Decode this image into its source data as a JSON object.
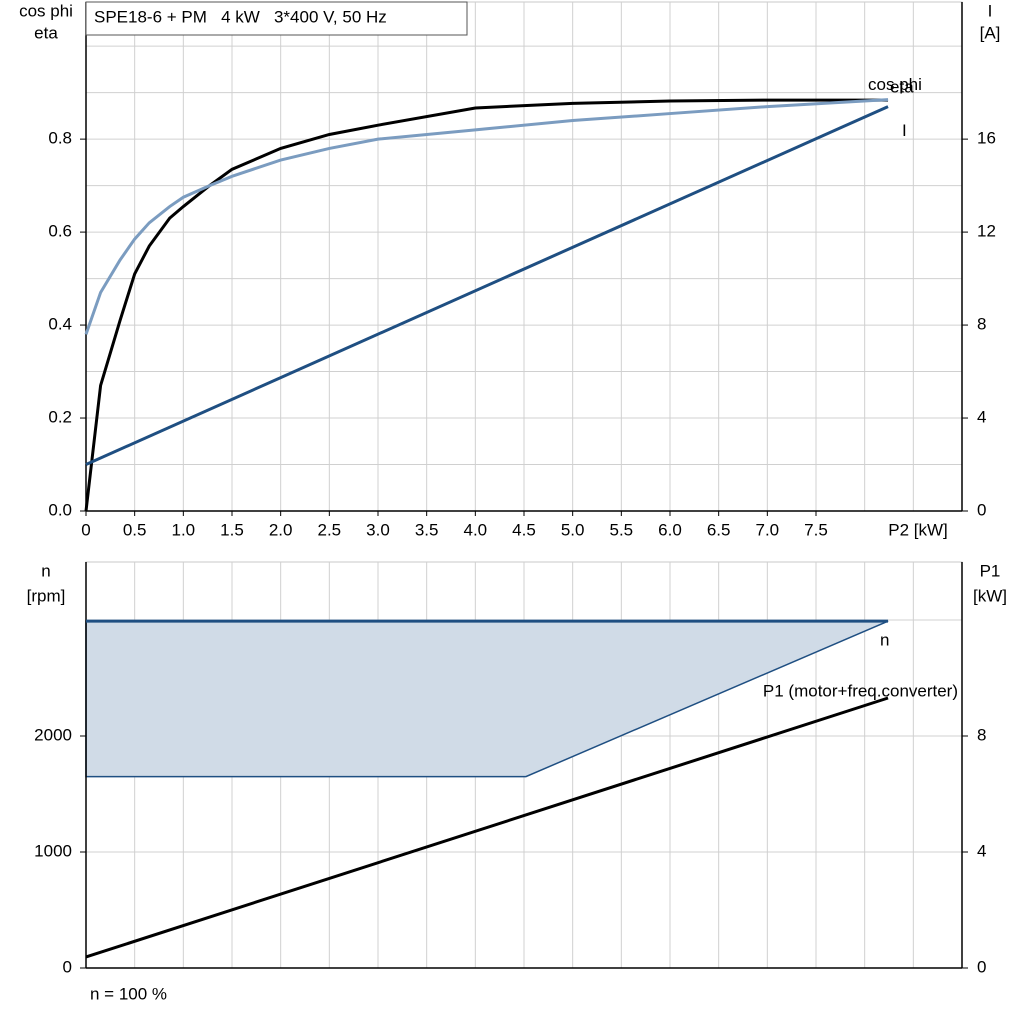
{
  "chart_data": [
    {
      "type": "line",
      "title": "SPE18-6 + PM   4 kW   3*400 V, 50 Hz",
      "y_label": [
        "cos phi",
        "eta"
      ],
      "y2_label": [
        "I",
        "[A]"
      ],
      "x_label": "P2 [kW]",
      "x": [
        0,
        0.15,
        0.35,
        0.5,
        0.65,
        0.86,
        1,
        1.27,
        1.5,
        2,
        2.5,
        3,
        4,
        5,
        6,
        7,
        8.24
      ],
      "series": [
        {
          "name": "eta",
          "color": "#000000",
          "values": [
            0,
            0.27,
            0.41,
            0.51,
            0.57,
            0.63,
            0.655,
            0.7,
            0.735,
            0.78,
            0.81,
            0.83,
            0.867,
            0.877,
            0.882,
            0.884,
            0.884
          ]
        },
        {
          "name": "cos phi",
          "color": "#7b9cc0",
          "values": [
            0.38,
            0.47,
            0.54,
            0.585,
            0.62,
            0.655,
            0.675,
            0.7,
            0.72,
            0.755,
            0.78,
            0.8,
            0.82,
            0.84,
            0.855,
            0.87,
            0.885
          ]
        },
        {
          "name": "I",
          "color": "#1f4f82",
          "axis": "y2",
          "x": [
            0,
            8.24
          ],
          "values": [
            2.0,
            17.4
          ]
        }
      ],
      "xlim": [
        0,
        9
      ],
      "ylim": [
        0,
        1.095
      ],
      "y2lim": [
        0,
        21.9
      ],
      "xticks": [
        0,
        0.5,
        {
          "value": 1,
          "label": "1.0"
        },
        1.5,
        {
          "value": 2,
          "label": "2.0"
        },
        2.5,
        {
          "value": 3,
          "label": "3.0"
        },
        3.5,
        {
          "value": 4,
          "label": "4.0"
        },
        4.5,
        {
          "value": 5,
          "label": "5.0"
        },
        5.5,
        {
          "value": 6,
          "label": "6.0"
        },
        6.5,
        {
          "value": 7,
          "label": "7.0"
        },
        7.5
      ],
      "yticks": [
        {
          "value": 0,
          "label": "0.0"
        },
        0.2,
        0.4,
        0.6,
        0.8
      ],
      "y2ticks": [
        0,
        4,
        8,
        12,
        16
      ],
      "xgrid": [
        0.5,
        1,
        1.5,
        2,
        2.5,
        3,
        3.5,
        4,
        4.5,
        5,
        5.5,
        6,
        6.5,
        7,
        7.5,
        8,
        8.5
      ],
      "ygrid": [
        0.1,
        0.2,
        0.3,
        0.4,
        0.5,
        0.6,
        0.7,
        0.8,
        0.9,
        1.0
      ]
    },
    {
      "type": "line",
      "annotation": "n = 100 %",
      "y_label": [
        "n",
        "[rpm]"
      ],
      "y2_label": [
        "P1",
        "[kW]"
      ],
      "band": {
        "color": "#d0dbe7",
        "x": [
          0,
          4.52,
          8.24
        ],
        "lower": [
          1650,
          1650,
          2990
        ],
        "upper": [
          2990,
          2990,
          2990
        ]
      },
      "series": [
        {
          "name": "n",
          "color": "#1f4f82",
          "x": [
            0,
            8.24
          ],
          "values": [
            2990,
            2990
          ]
        },
        {
          "name": "P1 (motor+freq.converter)",
          "color": "#000000",
          "axis": "y2",
          "x": [
            0,
            8.24
          ],
          "values": [
            0.38,
            9.31
          ]
        }
      ],
      "xlim": [
        0,
        9
      ],
      "ylim": [
        0,
        3500
      ],
      "y2lim": [
        0,
        14
      ],
      "yticks": [
        0,
        1000,
        2000
      ],
      "y2ticks": [
        0,
        4,
        8
      ],
      "xgrid": [
        0.5,
        1,
        1.5,
        2,
        2.5,
        3,
        3.5,
        4,
        4.5,
        5,
        5.5,
        6,
        6.5,
        7,
        7.5,
        8,
        8.5
      ],
      "ygrid": [
        1000,
        2000,
        3000
      ]
    }
  ]
}
